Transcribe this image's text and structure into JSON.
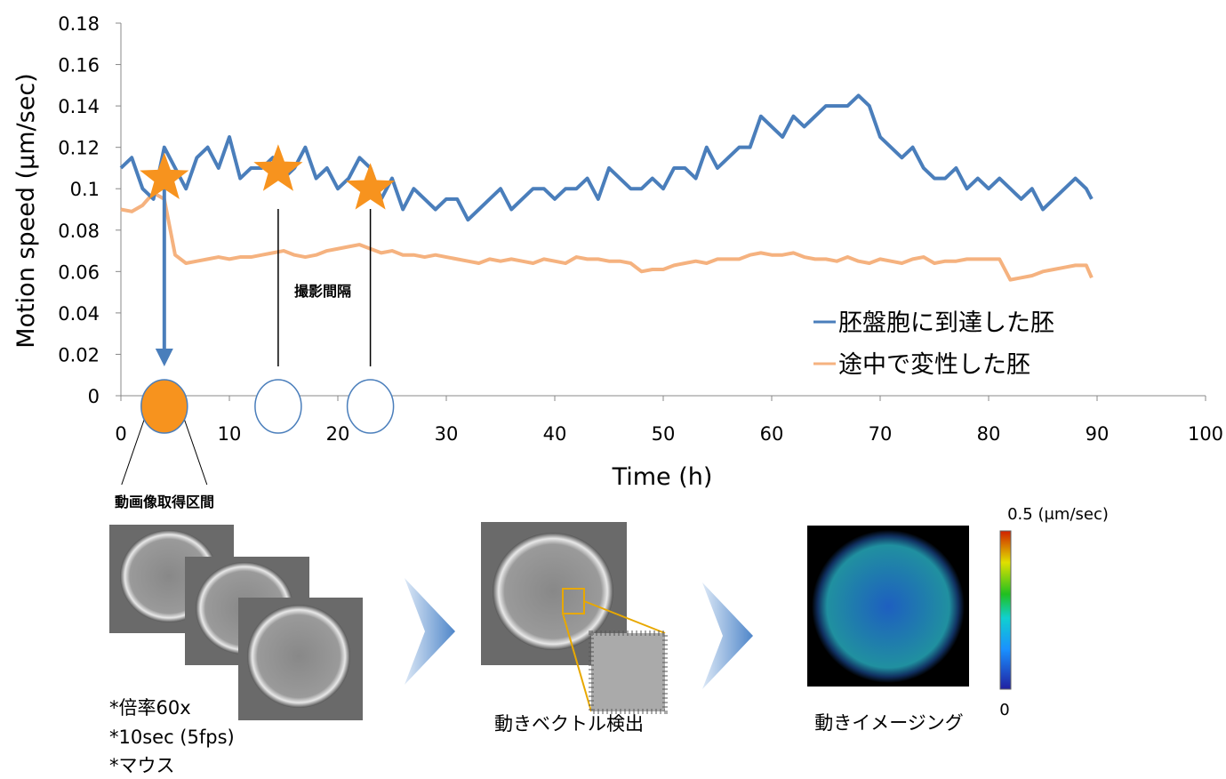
{
  "chart_data": {
    "type": "line",
    "y_label": "Motion speed (μm/sec)",
    "x_label": "Time (h)",
    "xlim": [
      0,
      100
    ],
    "xticks": [
      0,
      10,
      20,
      30,
      40,
      50,
      60,
      70,
      80,
      90,
      100
    ],
    "ylim": [
      0,
      0.18
    ],
    "yticks": [
      0,
      0.02,
      0.04,
      0.06,
      0.08,
      0.1,
      0.12,
      0.14,
      0.16,
      0.18
    ],
    "x": [
      0,
      1,
      2,
      3,
      4,
      5,
      6,
      7,
      8,
      9,
      10,
      11,
      12,
      13,
      14,
      15,
      16,
      17,
      18,
      19,
      20,
      21,
      22,
      23,
      24,
      25,
      26,
      27,
      28,
      29,
      30,
      31,
      32,
      33,
      34,
      35,
      36,
      37,
      38,
      39,
      40,
      41,
      42,
      43,
      44,
      45,
      46,
      47,
      48,
      49,
      50,
      51,
      52,
      53,
      54,
      55,
      56,
      57,
      58,
      59,
      60,
      61,
      62,
      63,
      64,
      65,
      66,
      67,
      68,
      69,
      70,
      71,
      72,
      73,
      74,
      75,
      76,
      77,
      78,
      79,
      80,
      81,
      82,
      83,
      84,
      85,
      86,
      87,
      88,
      89,
      89.5
    ],
    "series": [
      {
        "name": "胚盤胞に到達した胚",
        "color": "#4a7ebb",
        "values": [
          0.11,
          0.115,
          0.1,
          0.095,
          0.12,
          0.11,
          0.1,
          0.115,
          0.12,
          0.11,
          0.125,
          0.105,
          0.11,
          0.11,
          0.115,
          0.105,
          0.11,
          0.12,
          0.105,
          0.11,
          0.1,
          0.105,
          0.115,
          0.11,
          0.095,
          0.105,
          0.09,
          0.1,
          0.095,
          0.09,
          0.095,
          0.095,
          0.085,
          0.09,
          0.095,
          0.1,
          0.09,
          0.095,
          0.1,
          0.1,
          0.095,
          0.1,
          0.1,
          0.105,
          0.095,
          0.11,
          0.105,
          0.1,
          0.1,
          0.105,
          0.1,
          0.11,
          0.11,
          0.105,
          0.12,
          0.11,
          0.115,
          0.12,
          0.12,
          0.135,
          0.13,
          0.125,
          0.135,
          0.13,
          0.135,
          0.14,
          0.14,
          0.14,
          0.145,
          0.14,
          0.125,
          0.12,
          0.115,
          0.12,
          0.11,
          0.105,
          0.105,
          0.11,
          0.1,
          0.105,
          0.1,
          0.105,
          0.1,
          0.095,
          0.1,
          0.09,
          0.095,
          0.1,
          0.105,
          0.1,
          0.095
        ]
      },
      {
        "name": "途中で変性した胚",
        "color": "#f5b27f",
        "values": [
          0.09,
          0.089,
          0.092,
          0.098,
          0.095,
          0.068,
          0.064,
          0.065,
          0.066,
          0.067,
          0.066,
          0.067,
          0.067,
          0.068,
          0.069,
          0.07,
          0.068,
          0.067,
          0.068,
          0.07,
          0.071,
          0.072,
          0.073,
          0.071,
          0.069,
          0.07,
          0.068,
          0.068,
          0.067,
          0.068,
          0.067,
          0.066,
          0.065,
          0.064,
          0.066,
          0.065,
          0.066,
          0.065,
          0.064,
          0.066,
          0.065,
          0.064,
          0.067,
          0.066,
          0.066,
          0.065,
          0.065,
          0.064,
          0.06,
          0.061,
          0.061,
          0.063,
          0.064,
          0.065,
          0.064,
          0.066,
          0.066,
          0.066,
          0.068,
          0.069,
          0.068,
          0.068,
          0.069,
          0.067,
          0.066,
          0.066,
          0.065,
          0.067,
          0.065,
          0.064,
          0.066,
          0.065,
          0.064,
          0.066,
          0.067,
          0.064,
          0.065,
          0.065,
          0.066,
          0.066,
          0.066,
          0.066,
          0.056,
          0.057,
          0.058,
          0.06,
          0.061,
          0.062,
          0.063,
          0.063,
          0.057
        ]
      }
    ],
    "capture_points": {
      "x": [
        4,
        14.5,
        23
      ],
      "y": [
        0.105,
        0.109,
        0.1
      ]
    },
    "interval_label": "撮影間隔"
  },
  "workflow": {
    "acquisition_label": "動画像取得区間",
    "conditions": [
      "*倍率60x",
      "*10sec (5fps)",
      "*マウス"
    ],
    "vector_label": "動きベクトル検出",
    "imaging_label": "動きイメージング",
    "colorbar_max_label": "0.5 (μm/sec)",
    "colorbar_min_label": "0"
  }
}
